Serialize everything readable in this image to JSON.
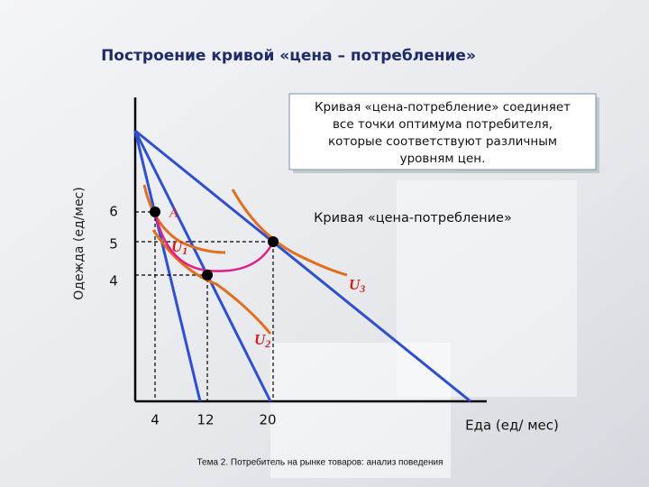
{
  "header": {
    "title": "Построение кривой «цена – потребление»"
  },
  "axes": {
    "y_label": "Одежда (ед/мес)",
    "x_label": "Еда (ед/ мес)",
    "y_ticks": [
      "6",
      "5",
      "4"
    ],
    "x_ticks": [
      "4",
      "12",
      "20"
    ]
  },
  "callout": {
    "lines": [
      "Кривая «цена-потребление» соединяет",
      "все точки оптимума потребителя,",
      "которые соответствуют различным",
      "уровням цен."
    ]
  },
  "curve_label": "Кривая «цена-потребление»",
  "point_label": "A",
  "indifference": [
    {
      "letter": "U",
      "index": "1"
    },
    {
      "letter": "U",
      "index": "2"
    },
    {
      "letter": "U",
      "index": "3"
    }
  ],
  "footer": "Тема 2. Потребитель на рынке товаров: анализ поведения"
}
